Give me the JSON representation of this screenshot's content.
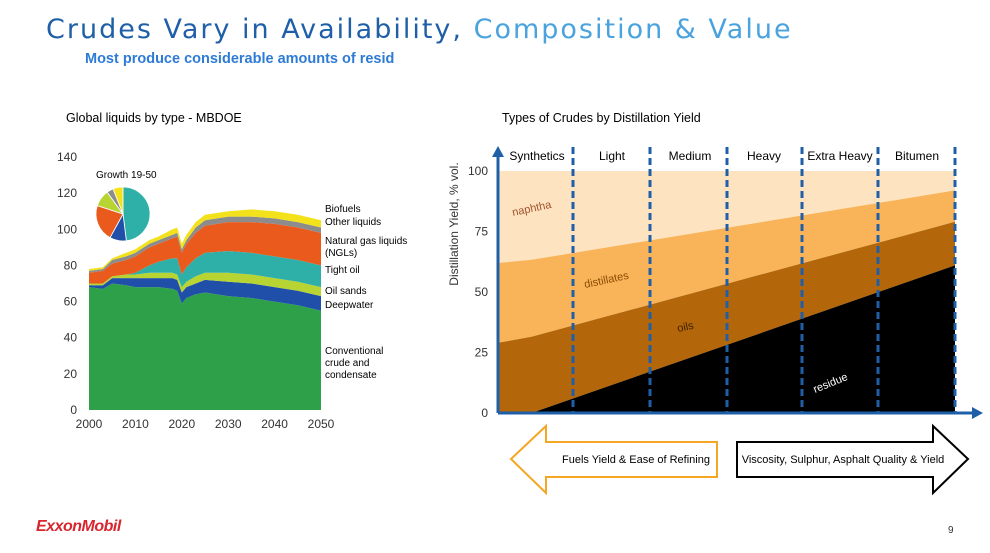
{
  "slide": {
    "title_part1": "Crudes Vary in Availability,",
    "title_part2": "Composition & Value",
    "subtitle": "Most produce considerable amounts of resid",
    "logo": "ExxonMobil",
    "page_number": "9"
  },
  "colors": {
    "title_dark": "#1f5fa8",
    "title_light": "#4aa3df",
    "conventional": "#2ea04a",
    "deepwater": "#1f4fa8",
    "oil_sands": "#b7d433",
    "tight_oil": "#2eb0a8",
    "ngls": "#ea5a1c",
    "other_liquids": "#8c8c8c",
    "biofuels": "#f3e21b",
    "naphtha": "#fde3c0",
    "distillates": "#f9b45a",
    "oils": "#b3670a",
    "residue": "#000000",
    "axis": "#1f5fa8",
    "divider": "#1f5fa8",
    "left_arrow": "#f5a623",
    "right_arrow": "#000000"
  },
  "chart_data": [
    {
      "type": "area",
      "title": "Global liquids by type - MBDOE",
      "x": [
        2000,
        2003,
        2005,
        2008,
        2010,
        2013,
        2015,
        2018,
        2019,
        2020,
        2021,
        2023,
        2025,
        2030,
        2035,
        2040,
        2045,
        2050
      ],
      "xticks": [
        2000,
        2010,
        2020,
        2030,
        2040,
        2050
      ],
      "ylim": [
        0,
        140
      ],
      "yticks": [
        0,
        20,
        40,
        60,
        80,
        100,
        120,
        140
      ],
      "stacking": "stacked",
      "legend_placement": "right",
      "series": [
        {
          "name": "Conventional\ncrude and\ncondensate",
          "values": [
            68,
            67,
            70,
            69,
            68,
            68,
            68,
            67,
            66,
            59,
            62,
            64,
            65,
            63,
            62,
            60,
            58,
            55
          ]
        },
        {
          "name": "Deepwater",
          "values": [
            1,
            2,
            3,
            4,
            5,
            5,
            5,
            6,
            6,
            6,
            6,
            6,
            7,
            8,
            8,
            8,
            8,
            8
          ]
        },
        {
          "name": "Oil sands",
          "values": [
            1,
            1,
            1,
            2,
            2,
            3,
            3,
            3,
            3,
            3,
            3,
            4,
            4,
            5,
            5,
            5,
            5,
            5
          ]
        },
        {
          "name": "Tight oil",
          "values": [
            0,
            0,
            0,
            0,
            1,
            4,
            6,
            8,
            9,
            7,
            8,
            10,
            11,
            12,
            12,
            12,
            12,
            12
          ]
        },
        {
          "name": "Natural gas liquids\n(NGLs)",
          "values": [
            6,
            7,
            7,
            8,
            9,
            10,
            10,
            11,
            12,
            12,
            13,
            14,
            15,
            16,
            17,
            18,
            18,
            18
          ]
        },
        {
          "name": "Other liquids",
          "values": [
            1,
            1,
            2,
            2,
            2,
            2,
            2,
            2,
            2,
            2,
            2,
            3,
            3,
            3,
            3,
            3,
            3,
            3
          ]
        },
        {
          "name": "Biofuels",
          "values": [
            1,
            1,
            1,
            2,
            2,
            2,
            2,
            3,
            3,
            3,
            3,
            3,
            3,
            3,
            4,
            4,
            4,
            4
          ]
        }
      ],
      "inset": {
        "type": "pie",
        "title": "Growth 19-50",
        "values": [
          48,
          10,
          22,
          10,
          4,
          6
        ],
        "series_keys": [
          "tight_oil",
          "deepwater",
          "ngls",
          "oil_sands",
          "other_liquids",
          "biofuels"
        ]
      }
    },
    {
      "type": "area",
      "title": "Types of Crudes by Distillation Yield",
      "ylabel": "Distillation Yield, % vol.",
      "ylim": [
        0,
        100
      ],
      "yticks": [
        0,
        25,
        50,
        75,
        100
      ],
      "categories": [
        "Synthetics",
        "Light",
        "Medium",
        "Heavy",
        "Extra Heavy",
        "Bitumen"
      ],
      "boundaries": [
        {
          "x": 0,
          "residue": 0,
          "oils": 29,
          "distillates": 62
        },
        {
          "x": 0.0732,
          "residue": 0,
          "oils": 31.5,
          "distillates": 63.3
        },
        {
          "x": 1,
          "residue": 61,
          "oils": 79,
          "distillates": 92
        }
      ],
      "layers": [
        {
          "name": "residue",
          "color_key": "residue"
        },
        {
          "name": "oils",
          "color_key": "oils"
        },
        {
          "name": "distillates",
          "color_key": "distillates"
        },
        {
          "name": "naphtha",
          "color_key": "naphtha"
        }
      ],
      "arrows": [
        {
          "direction": "left",
          "label": "Fuels Yield & Ease of Refining"
        },
        {
          "direction": "right",
          "label": "Viscosity, Sulphur, Asphalt Quality & Yield"
        }
      ]
    }
  ]
}
